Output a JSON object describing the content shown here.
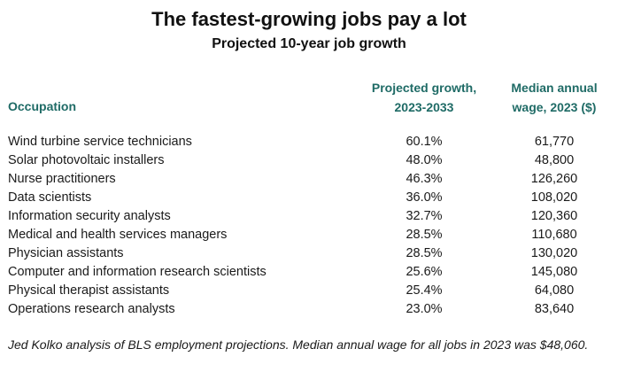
{
  "title": "The fastest-growing jobs pay a lot",
  "subtitle": "Projected 10-year job growth",
  "chart_data": {
    "type": "table",
    "columns": [
      {
        "key": "occupation",
        "label": "Occupation"
      },
      {
        "key": "growth",
        "label_lines": [
          "Projected growth,",
          "2023-2033"
        ]
      },
      {
        "key": "wage",
        "label_lines": [
          "Median annual",
          "wage, 2023 ($)"
        ]
      }
    ],
    "rows": [
      {
        "occupation": "Wind turbine service technicians",
        "growth": "60.1%",
        "wage": "61,770"
      },
      {
        "occupation": "Solar photovoltaic installers",
        "growth": "48.0%",
        "wage": "48,800"
      },
      {
        "occupation": "Nurse practitioners",
        "growth": "46.3%",
        "wage": "126,260"
      },
      {
        "occupation": "Data scientists",
        "growth": "36.0%",
        "wage": "108,020"
      },
      {
        "occupation": "Information security analysts",
        "growth": "32.7%",
        "wage": "120,360"
      },
      {
        "occupation": "Medical and health services managers",
        "growth": "28.5%",
        "wage": "110,680"
      },
      {
        "occupation": "Physician assistants",
        "growth": "28.5%",
        "wage": "130,020"
      },
      {
        "occupation": "Computer and information research scientists",
        "growth": "25.6%",
        "wage": "145,080"
      },
      {
        "occupation": "Physical therapist assistants",
        "growth": "25.4%",
        "wage": "64,080"
      },
      {
        "occupation": "Operations research analysts",
        "growth": "23.0%",
        "wage": "83,640"
      }
    ]
  },
  "footnote": "Jed Kolko analysis of BLS employment projections. Median annual wage for all jobs in 2023 was $48,060.",
  "colors": {
    "header": "#1f6b66",
    "text": "#1a1a1a"
  }
}
